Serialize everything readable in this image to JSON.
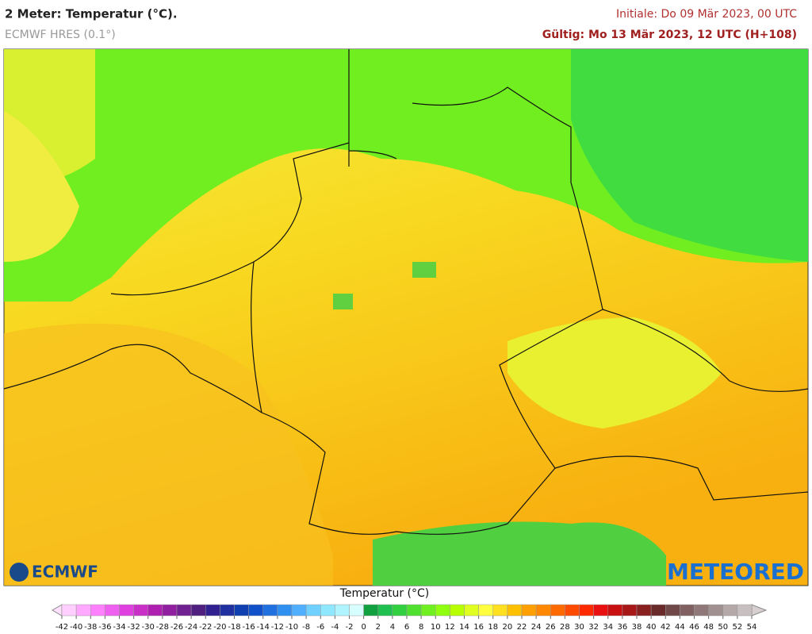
{
  "header": {
    "title": "2 Meter: Temperatur (°C).",
    "model": "ECMWF HRES (0.1°)",
    "initial": "Initiale: Do 09 Mär 2023, 00 UTC",
    "valid": "Gültig: Mo 13 Mär 2023, 12 UTC (H+108)"
  },
  "logos": {
    "left": "ECMWF",
    "right": "METEORED"
  },
  "colorbar": {
    "title": "Temperatur (°C)",
    "ticks": [
      -42,
      -40,
      -38,
      -36,
      -34,
      -32,
      -30,
      -28,
      -26,
      -24,
      -22,
      -20,
      -18,
      -16,
      -14,
      -12,
      -10,
      -8,
      -6,
      -4,
      -2,
      0,
      2,
      4,
      6,
      8,
      10,
      12,
      14,
      16,
      18,
      20,
      22,
      24,
      26,
      28,
      30,
      32,
      34,
      36,
      38,
      40,
      42,
      44,
      46,
      48,
      50,
      52,
      54
    ],
    "colors": [
      "#ffd0ff",
      "#ffa8ff",
      "#ff80ff",
      "#f060f0",
      "#e040e0",
      "#c830c8",
      "#b020b0",
      "#9020a0",
      "#702090",
      "#502080",
      "#302090",
      "#2030a0",
      "#1040b0",
      "#1050c8",
      "#2070e0",
      "#3090f0",
      "#50b0ff",
      "#70d0ff",
      "#90e8ff",
      "#b0f4ff",
      "#d8ffff",
      "#10a040",
      "#20c050",
      "#30d040",
      "#50e030",
      "#70f020",
      "#90ff10",
      "#b8ff00",
      "#e0ff20",
      "#ffff40",
      "#ffe020",
      "#ffc000",
      "#ffa000",
      "#ff8800",
      "#ff6a00",
      "#ff4a00",
      "#ff2a00",
      "#e81010",
      "#c81010",
      "#a81818",
      "#882020",
      "#6a2a2a",
      "#704848",
      "#806060",
      "#907878",
      "#a09090",
      "#b4a8a8",
      "#c8c0c0"
    ]
  }
}
